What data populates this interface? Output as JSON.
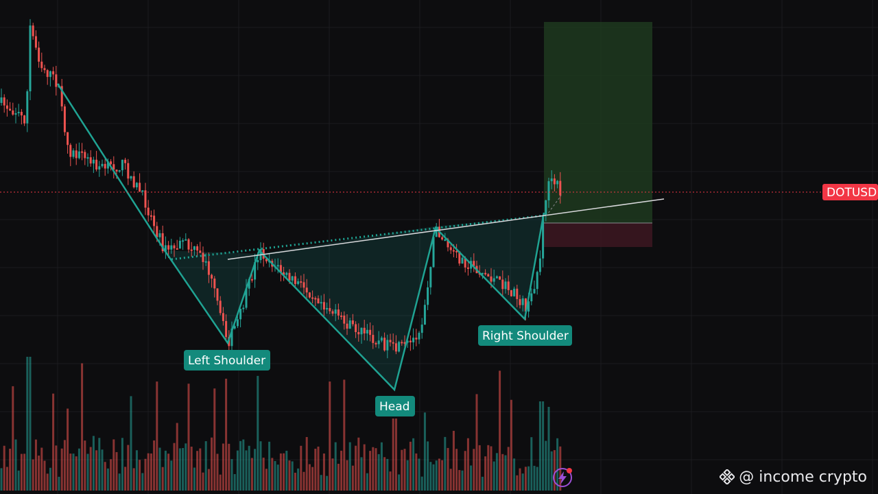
{
  "chart_data": {
    "type": "candlestick",
    "symbol_badge": "DOTUSD",
    "labels": {
      "left_shoulder": "Left Shoulder",
      "head": "Head",
      "right_shoulder": "Right Shoulder"
    },
    "pattern": "inverse head and shoulders",
    "colors": {
      "bull": "#26a69a",
      "bear": "#ef5350",
      "background": "#0d0d0f",
      "pattern_line": "#1fa393",
      "label_bg": "#138a7c",
      "badge_bg": "#f23645",
      "target_zone": "#1f3a1f",
      "stop_zone": "#3a1620"
    },
    "grid": true,
    "legend": "none"
  },
  "watermark": {
    "text": "@ income crypto",
    "icon": "binance-square-icon"
  },
  "live_button": {
    "icon": "lightning-icon"
  }
}
